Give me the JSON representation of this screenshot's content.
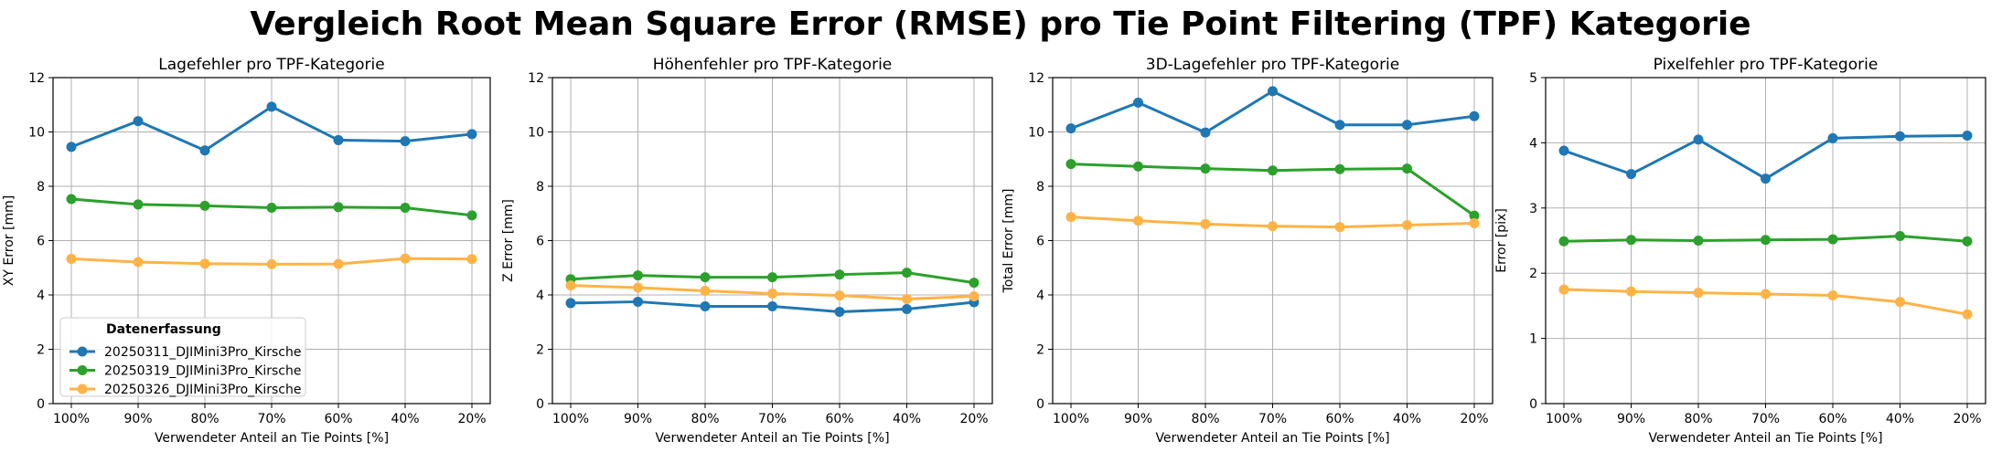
{
  "suptitle": "Vergleich Root Mean Square Error (RMSE) pro Tie Point Filtering (TPF) Kategorie",
  "legend": {
    "title": "Datenerfassung",
    "entries": [
      "20250311_DJIMini3Pro_Kirsche",
      "20250319_DJIMini3Pro_Kirsche",
      "20250326_DJIMini3Pro_Kirsche"
    ]
  },
  "colors": {
    "series1": "#1f77b4",
    "series2": "#2ca02c",
    "series3": "#ffb347",
    "grid": "#b0b0b0"
  },
  "chart_data": [
    {
      "type": "line",
      "title": "Lagefehler pro TPF-Kategorie",
      "xlabel": "Verwendeter Anteil an Tie Points [%]",
      "ylabel": "XY Error [mm]",
      "categories": [
        "100%",
        "90%",
        "80%",
        "70%",
        "60%",
        "40%",
        "20%"
      ],
      "ylim": [
        0,
        12
      ],
      "yticks": [
        "0",
        "2",
        "4",
        "6",
        "8",
        "10",
        "12"
      ],
      "grid": true,
      "legend_position": "lower-left",
      "series": [
        {
          "name": "20250311_DJIMini3Pro_Kirsche",
          "values": [
            9.45,
            10.4,
            9.32,
            10.93,
            9.7,
            9.66,
            9.92
          ]
        },
        {
          "name": "20250319_DJIMini3Pro_Kirsche",
          "values": [
            7.53,
            7.33,
            7.28,
            7.21,
            7.23,
            7.21,
            6.93
          ]
        },
        {
          "name": "20250326_DJIMini3Pro_Kirsche",
          "values": [
            5.33,
            5.21,
            5.15,
            5.13,
            5.14,
            5.34,
            5.32
          ]
        }
      ]
    },
    {
      "type": "line",
      "title": "Höhenfehler pro TPF-Kategorie",
      "xlabel": "Verwendeter Anteil an Tie Points [%]",
      "ylabel": "Z Error [mm]",
      "categories": [
        "100%",
        "90%",
        "80%",
        "70%",
        "60%",
        "40%",
        "20%"
      ],
      "ylim": [
        0,
        12
      ],
      "yticks": [
        "0",
        "2",
        "4",
        "6",
        "8",
        "10",
        "12"
      ],
      "grid": true,
      "series": [
        {
          "name": "20250311_DJIMini3Pro_Kirsche",
          "values": [
            3.7,
            3.75,
            3.58,
            3.58,
            3.38,
            3.48,
            3.73
          ]
        },
        {
          "name": "20250319_DJIMini3Pro_Kirsche",
          "values": [
            4.58,
            4.72,
            4.65,
            4.65,
            4.75,
            4.82,
            4.45
          ]
        },
        {
          "name": "20250326_DJIMini3Pro_Kirsche",
          "values": [
            4.35,
            4.27,
            4.15,
            4.05,
            3.98,
            3.85,
            3.95
          ]
        }
      ]
    },
    {
      "type": "line",
      "title": "3D-Lagefehler pro TPF-Kategorie",
      "xlabel": "Verwendeter Anteil an Tie Points [%]",
      "ylabel": "Total Error [mm]",
      "categories": [
        "100%",
        "90%",
        "80%",
        "70%",
        "60%",
        "40%",
        "20%"
      ],
      "ylim": [
        0,
        12
      ],
      "yticks": [
        "0",
        "2",
        "4",
        "6",
        "8",
        "10",
        "12"
      ],
      "grid": true,
      "series": [
        {
          "name": "20250311_DJIMini3Pro_Kirsche",
          "values": [
            10.13,
            11.08,
            9.98,
            11.5,
            10.26,
            10.26,
            10.58
          ]
        },
        {
          "name": "20250319_DJIMini3Pro_Kirsche",
          "values": [
            8.82,
            8.73,
            8.65,
            8.58,
            8.63,
            8.65,
            6.92
          ]
        },
        {
          "name": "20250326_DJIMini3Pro_Kirsche",
          "values": [
            6.87,
            6.73,
            6.61,
            6.53,
            6.5,
            6.57,
            6.64
          ]
        }
      ]
    },
    {
      "type": "line",
      "title": "Pixelfehler pro TPF-Kategorie",
      "xlabel": "Verwendeter Anteil an Tie Points [%]",
      "ylabel": "Error [pix]",
      "categories": [
        "100%",
        "90%",
        "80%",
        "70%",
        "60%",
        "40%",
        "20%"
      ],
      "ylim": [
        0,
        5
      ],
      "yticks": [
        "0",
        "1",
        "2",
        "3",
        "4",
        "5"
      ],
      "grid": true,
      "series": [
        {
          "name": "20250311_DJIMini3Pro_Kirsche",
          "values": [
            3.88,
            3.52,
            4.05,
            3.45,
            4.07,
            4.1,
            4.11
          ]
        },
        {
          "name": "20250319_DJIMini3Pro_Kirsche",
          "values": [
            2.49,
            2.51,
            2.5,
            2.51,
            2.52,
            2.57,
            2.49
          ]
        },
        {
          "name": "20250326_DJIMini3Pro_Kirsche",
          "values": [
            1.75,
            1.72,
            1.7,
            1.68,
            1.66,
            1.56,
            1.37
          ]
        }
      ]
    }
  ]
}
